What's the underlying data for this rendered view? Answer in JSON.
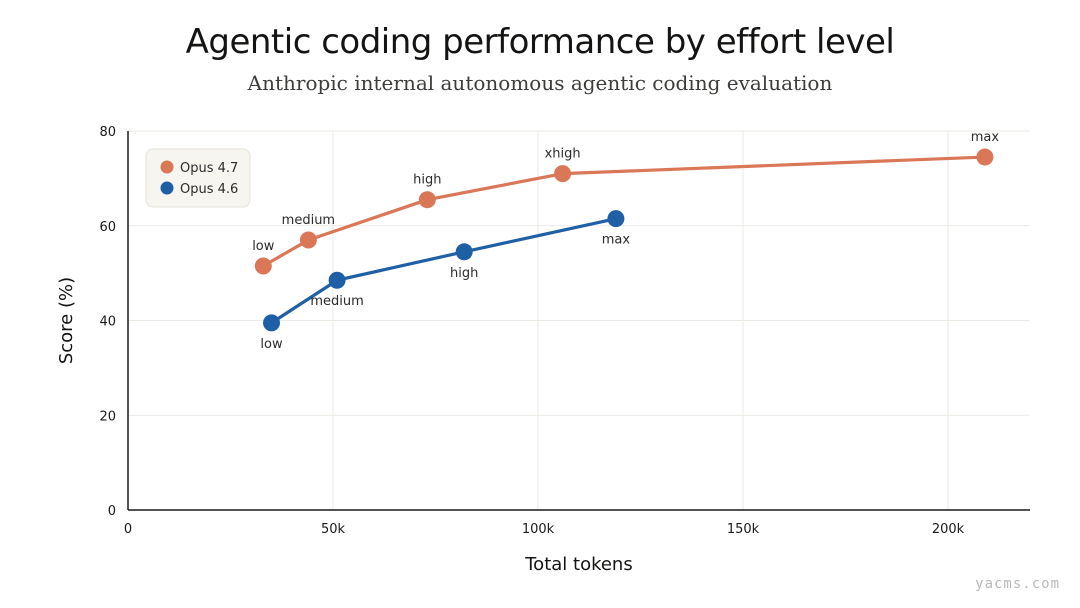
{
  "watermark": "yacms.com",
  "chart_data": {
    "type": "line",
    "title": "Agentic coding performance by effort level",
    "subtitle": "Anthropic internal autonomous agentic coding evaluation",
    "xlabel": "Total tokens",
    "ylabel": "Score (%)",
    "xlim": [
      0,
      220000
    ],
    "ylim": [
      0,
      80
    ],
    "xticks": [
      0,
      50000,
      100000,
      150000,
      200000
    ],
    "xtick_labels": [
      "0",
      "50k",
      "100k",
      "150k",
      "200k"
    ],
    "yticks": [
      0,
      20,
      40,
      60,
      80
    ],
    "ytick_labels": [
      "0",
      "20",
      "40",
      "60",
      "80"
    ],
    "grid": true,
    "legend": "top-left",
    "series": [
      {
        "name": "Opus 4.7",
        "color": "#d97757",
        "label_position": "above",
        "points": [
          {
            "x": 33000,
            "y": 51.5,
            "label": "low"
          },
          {
            "x": 44000,
            "y": 57,
            "label": "medium"
          },
          {
            "x": 73000,
            "y": 65.5,
            "label": "high"
          },
          {
            "x": 106000,
            "y": 71,
            "label": "xhigh"
          },
          {
            "x": 209000,
            "y": 74.5,
            "label": "max"
          }
        ]
      },
      {
        "name": "Opus 4.6",
        "color": "#1f5fa6",
        "label_position": "below",
        "points": [
          {
            "x": 35000,
            "y": 39.5,
            "label": "low"
          },
          {
            "x": 51000,
            "y": 48.5,
            "label": "medium"
          },
          {
            "x": 82000,
            "y": 54.5,
            "label": "high"
          },
          {
            "x": 119000,
            "y": 61.5,
            "label": "max"
          }
        ]
      }
    ]
  }
}
